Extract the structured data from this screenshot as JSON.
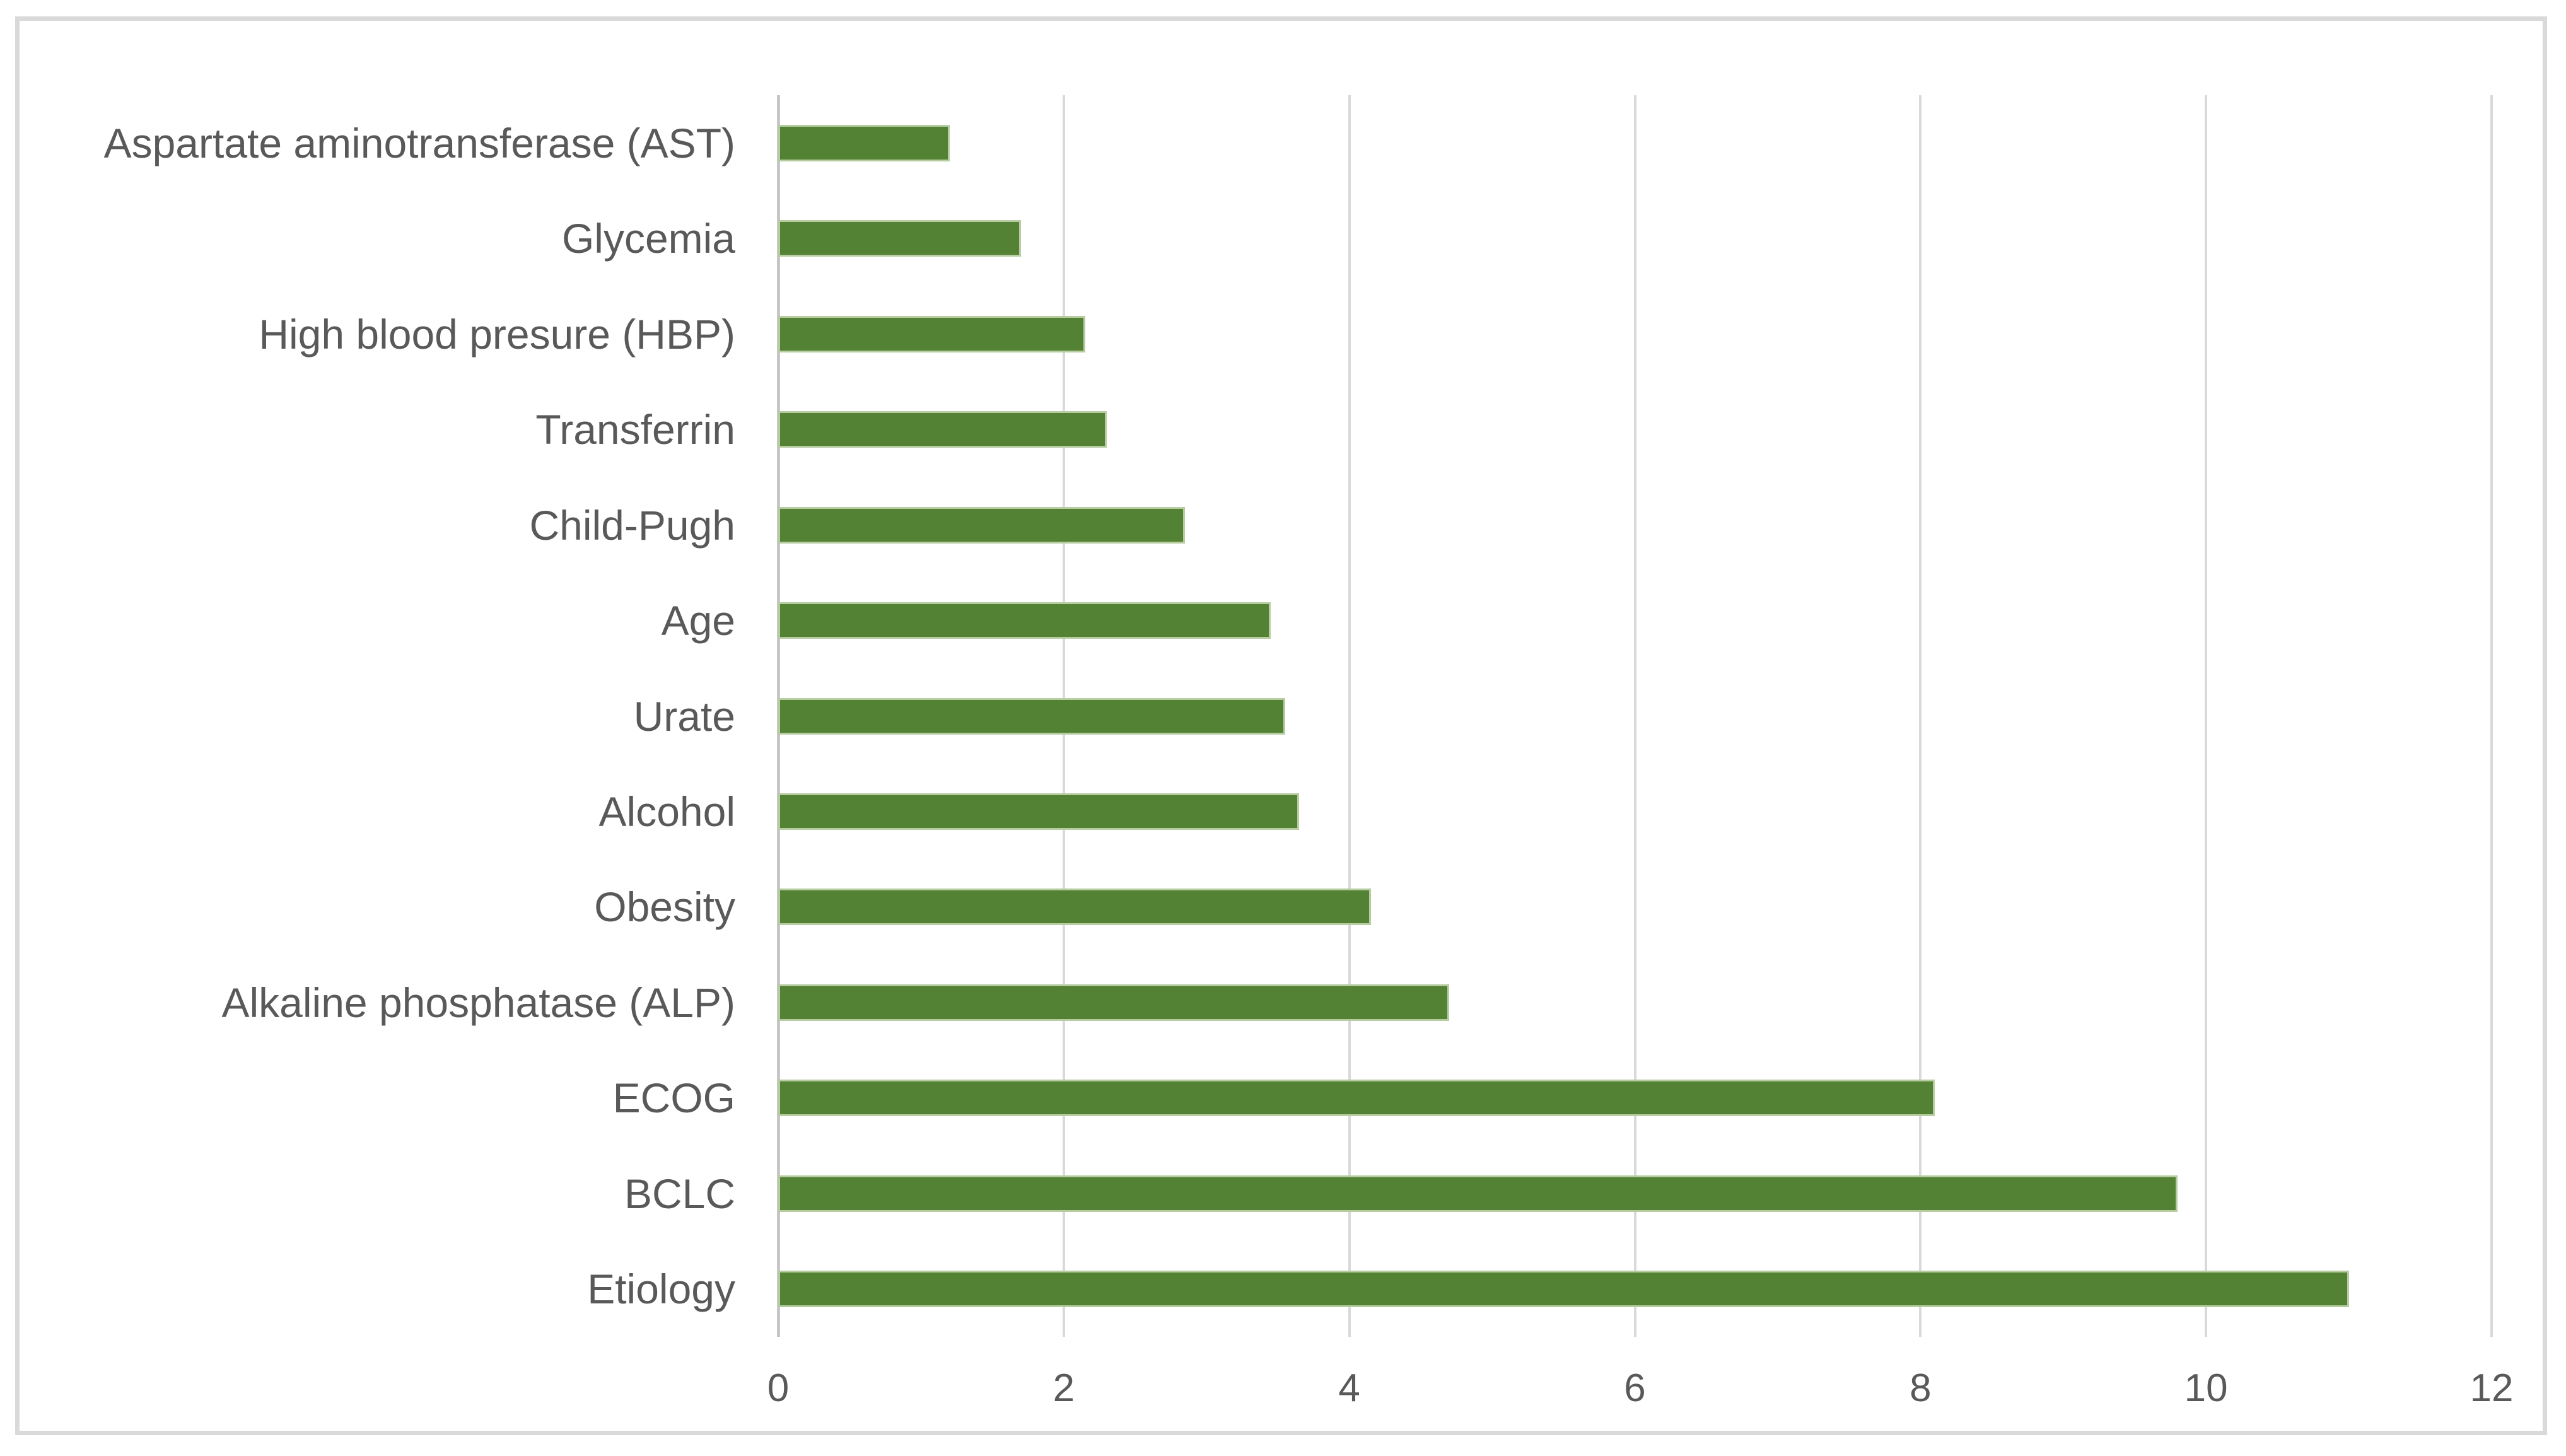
{
  "chart_data": {
    "type": "bar",
    "orientation": "horizontal",
    "title": "",
    "xlabel": "",
    "ylabel": "",
    "categories": [
      "Aspartate aminotransferase (AST)",
      "Glycemia",
      "High blood presure (HBP)",
      "Transferrin",
      "Child-Pugh",
      "Age",
      "Urate",
      "Alcohol",
      "Obesity",
      "Alkaline phosphatase (ALP)",
      "ECOG",
      "BCLC",
      "Etiology"
    ],
    "values": [
      1.2,
      1.7,
      2.15,
      2.3,
      2.85,
      3.45,
      3.55,
      3.65,
      4.15,
      4.7,
      8.1,
      9.8,
      11.0
    ],
    "xlim": [
      0,
      12
    ],
    "xticks": [
      0,
      2,
      4,
      6,
      8,
      10,
      12
    ],
    "grid": "vertical-gridlines-on",
    "legend": "none",
    "colors": {
      "bar_fill": "#548235",
      "bar_border": "#b7cda1",
      "gridline": "#d9d9d9",
      "axis_line": "#c6c6c6",
      "text": "#595959",
      "frame_border": "#d9d9d9",
      "background": "#ffffff"
    }
  }
}
